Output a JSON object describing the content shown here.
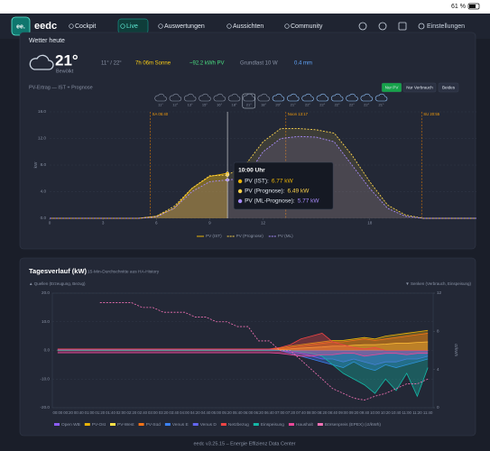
{
  "status_bar": {
    "battery": "61 %"
  },
  "nav": {
    "brand": "eedc",
    "items": [
      "Cockpit",
      "Live",
      "Auswertungen",
      "Aussichten",
      "Community"
    ],
    "active": 1,
    "settings": "Einstellungen"
  },
  "weather": {
    "title": "Wetter heute",
    "temperature": "21°",
    "condition": "Bewölkt",
    "min_max": "11° / 22°",
    "sunshine": "7h 06m Sonne",
    "pv_forecast": "~92.2 kWh PV",
    "base_load": "Grundlast 10 W",
    "rain": "0.4 mm",
    "hourly_temps": [
      "11°",
      "12°",
      "13°",
      "15°",
      "16°",
      "18°",
      "21°",
      "18°",
      "20°",
      "21°",
      "22°",
      "22°",
      "22°",
      "22°",
      "22°",
      "21°"
    ]
  },
  "chart_data": [
    {
      "type": "line",
      "title": "PV-Ertrag — IST + Prognose",
      "toggle": [
        "Nur PV",
        "Nur Verbrauch",
        "Beides"
      ],
      "toggle_active": 0,
      "x": [
        0,
        1,
        2,
        3,
        4,
        5,
        6,
        7,
        8,
        9,
        10,
        11,
        12,
        13,
        14,
        15,
        16,
        17,
        18,
        19,
        20,
        21,
        22,
        23,
        24
      ],
      "xlim": [
        0,
        24
      ],
      "xticks": [
        0,
        3,
        6,
        9,
        12,
        18
      ],
      "ylim": [
        0,
        16
      ],
      "yticks": [
        {
          "value": 0,
          "label": "0.0"
        },
        {
          "value": 4,
          "label": "4.0"
        },
        {
          "value": 8,
          "label": "8.0"
        },
        {
          "value": 12,
          "label": "12.0"
        },
        {
          "value": 16,
          "label": "16.0"
        }
      ],
      "ylabel": "kW",
      "annotations": [
        {
          "x": 5.667,
          "label": "SA 05:40"
        },
        {
          "x": 13.283,
          "label": "Noon 13:17"
        },
        {
          "x": 20.917,
          "label": "SU 20:55"
        }
      ],
      "tooltip": {
        "x": 10,
        "title": "10:00 Uhr",
        "rows": [
          {
            "name": "PV (IST):",
            "value": "6.77 kW"
          },
          {
            "name": "PV (Prognose):",
            "value": "6.49 kW"
          },
          {
            "name": "PV (ML-Prognose):",
            "value": "5.77 kW"
          }
        ]
      },
      "series": [
        {
          "name": "PV (IST)",
          "color": "#eab308",
          "dashed": false,
          "values": [
            0,
            0,
            0,
            0,
            0,
            0,
            0.3,
            1.5,
            4.5,
            6.3,
            6.77,
            null,
            null,
            null,
            null,
            null,
            null,
            null,
            null,
            null,
            null,
            null,
            null,
            null,
            null
          ]
        },
        {
          "name": "PV (Prognose)",
          "color": "#fcd34d",
          "dashed": true,
          "values": [
            0,
            0,
            0,
            0,
            0,
            0,
            0.3,
            1.8,
            4.5,
            6.4,
            6.49,
            8,
            11.5,
            13.5,
            13.5,
            13.3,
            12.8,
            9.5,
            5.5,
            2,
            0.5,
            0,
            0,
            0,
            0
          ]
        },
        {
          "name": "PV (ML)",
          "color": "#a78bfa",
          "dashed": true,
          "values": [
            0,
            0,
            0,
            0,
            0,
            0,
            0.2,
            1.5,
            4,
            5.5,
            5.77,
            6,
            10,
            12,
            12.3,
            12.2,
            11.5,
            8,
            4.5,
            1.5,
            0.3,
            0,
            0,
            0,
            0
          ]
        }
      ]
    },
    {
      "type": "area",
      "title": "Tagesverlauf (kW)",
      "subtitle": "15-Min-Durchschnitte aus HA-History",
      "sources_label": "▲ Quellen (Erzeugung, Bezug)",
      "sinks_label": "▼ Senken (Verbrauch, Einspeisung)",
      "categories": [
        "00:00",
        "00:20",
        "00:40",
        "01:00",
        "01:20",
        "01:40",
        "02:00",
        "02:20",
        "02:40",
        "03:00",
        "03:20",
        "03:40",
        "04:00",
        "04:20",
        "04:40",
        "05:00",
        "05:20",
        "05:40",
        "06:00",
        "06:20",
        "06:40",
        "07:00",
        "07:20",
        "07:40",
        "08:00",
        "08:20",
        "08:40",
        "09:00",
        "09:20",
        "09:40",
        "10:00",
        "10:20",
        "10:40",
        "11:00",
        "11:20",
        "11:40"
      ],
      "ylim": [
        -20,
        20
      ],
      "yticks": [
        {
          "value": -20,
          "label": "-20.0"
        },
        {
          "value": -10,
          "label": "-10.0"
        },
        {
          "value": 0,
          "label": "0.0"
        },
        {
          "value": 10,
          "label": "10.0"
        },
        {
          "value": 20,
          "label": "20.0"
        }
      ],
      "y2lim": [
        0,
        12
      ],
      "y2ticks": [
        0,
        4,
        8,
        12
      ],
      "y2label": "ct/kWh",
      "series": [
        {
          "name": "Open WB",
          "color": "#8b5cf6",
          "values": [
            0,
            0,
            0,
            0,
            0,
            0,
            0,
            0,
            0,
            0,
            0,
            0,
            0,
            0,
            0,
            0,
            0,
            0,
            0,
            0,
            0,
            0,
            0,
            0,
            0,
            0,
            0,
            0,
            0,
            0,
            0,
            0,
            0,
            0,
            0,
            0
          ]
        },
        {
          "name": "PV-Ost",
          "color": "#eab308",
          "values": [
            0,
            0,
            0,
            0,
            0,
            0,
            0,
            0,
            0,
            0,
            0,
            0,
            0,
            0,
            0,
            0,
            0,
            0,
            0,
            0,
            0.3,
            0.8,
            1.5,
            2,
            2.5,
            3,
            3.5,
            3.5,
            4,
            4.5,
            4,
            5,
            5.5,
            6,
            6.5,
            7
          ]
        },
        {
          "name": "PV-West",
          "color": "#fde047",
          "values": [
            0,
            0,
            0,
            0,
            0,
            0,
            0,
            0,
            0,
            0,
            0,
            0,
            0,
            0,
            0,
            0,
            0,
            0,
            0,
            0,
            0.1,
            0.3,
            0.5,
            0.8,
            1,
            1.2,
            1.5,
            1.5,
            1.8,
            2,
            2,
            2.2,
            2.5,
            2.5,
            2.8,
            3
          ]
        },
        {
          "name": "PV-Süd",
          "color": "#f97316",
          "values": [
            0,
            0,
            0,
            0,
            0,
            0,
            0,
            0,
            0,
            0,
            0,
            0,
            0,
            0,
            0,
            0,
            0,
            0,
            0,
            0,
            0.2,
            0.5,
            1,
            1.5,
            2,
            2.5,
            3,
            3,
            3.5,
            4,
            3.5,
            4,
            4.5,
            5,
            5.5,
            6
          ]
        },
        {
          "name": "Venus E",
          "color": "#3b82f6",
          "values": [
            0.3,
            0.3,
            0.3,
            0.3,
            0.3,
            0.3,
            0.3,
            0.3,
            0.3,
            0.3,
            0.3,
            0.3,
            0.3,
            0.3,
            0.3,
            0.3,
            0.3,
            0.3,
            0.3,
            0.3,
            0.3,
            0,
            -1,
            -2,
            -3,
            -4,
            -5,
            -6,
            -4,
            -6,
            -7,
            -5,
            -6,
            -5,
            -4,
            -3
          ]
        },
        {
          "name": "Venus D",
          "color": "#6366f1",
          "values": [
            0.3,
            0.3,
            0.3,
            0.3,
            0.3,
            0.3,
            0.3,
            0.3,
            0.3,
            0.3,
            0.3,
            0.3,
            0.3,
            0.3,
            0.3,
            0.3,
            0.3,
            0.3,
            0.3,
            0.3,
            0.2,
            0,
            -0.5,
            -1,
            -2,
            -3,
            -3,
            -4,
            -3,
            -4,
            -5,
            -4,
            -4,
            -3,
            -3,
            -2
          ]
        },
        {
          "name": "Netzbezug",
          "color": "#ef4444",
          "values": [
            0.5,
            0.5,
            0.5,
            0.5,
            0.5,
            0.5,
            0.5,
            0.5,
            0.5,
            0.5,
            0.5,
            0.5,
            0.5,
            0.5,
            0.5,
            0.5,
            0.5,
            0.5,
            0.5,
            0.5,
            0.5,
            1,
            2,
            4,
            5,
            6,
            3,
            2,
            1,
            0.5,
            1,
            0,
            0,
            0,
            0,
            0
          ]
        },
        {
          "name": "Einspeisung",
          "color": "#14b8a6",
          "values": [
            0,
            0,
            0,
            0,
            0,
            0,
            0,
            0,
            0,
            0,
            0,
            0,
            0,
            0,
            0,
            0,
            0,
            0,
            0,
            0,
            0,
            0,
            0,
            -0.5,
            -1,
            -2,
            -5,
            -8,
            -10,
            -12,
            -15,
            -10,
            -14,
            -8,
            -16,
            -6
          ]
        },
        {
          "name": "Haushalt",
          "color": "#ec4899",
          "values": [
            -0.8,
            -0.8,
            -0.8,
            -0.8,
            -0.8,
            -0.8,
            -0.8,
            -0.8,
            -0.8,
            -0.8,
            -0.8,
            -0.8,
            -0.8,
            -0.8,
            -0.8,
            -0.8,
            -0.8,
            -0.8,
            -0.8,
            -0.8,
            -0.8,
            -1,
            -1.5,
            -2,
            -2,
            -1.5,
            -1.5,
            -1,
            -1,
            -2,
            -1.5,
            -1,
            -1,
            -1.5,
            -1,
            -1
          ]
        },
        {
          "name": "Börsenpreis (EPEX) (ct/kWh)",
          "color": "#f472b6",
          "axis": "y2",
          "dashed": true,
          "values": [
            null,
            null,
            null,
            null,
            11,
            11,
            11,
            11,
            10.5,
            10.5,
            10,
            10,
            10,
            9.5,
            9.5,
            9,
            9,
            8.5,
            8.5,
            7,
            7,
            6,
            6,
            5,
            4,
            3,
            2,
            1.5,
            1,
            0.8,
            1.2,
            1.5,
            2,
            2.5,
            2.5,
            3
          ]
        }
      ]
    }
  ],
  "footer": "eedc v3.25.15 – Energie Effizienz Data Center"
}
